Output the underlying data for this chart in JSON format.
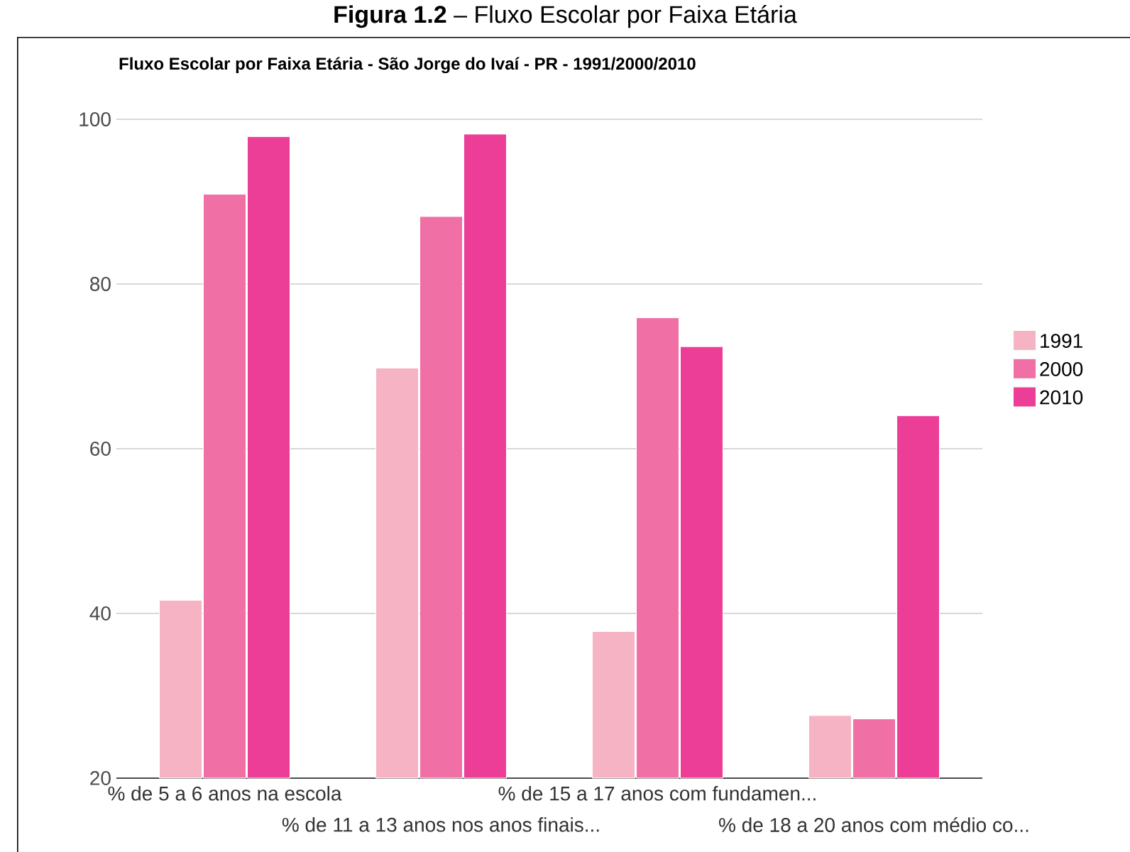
{
  "chart_data": {
    "type": "bar",
    "title": "Fluxo Escolar por Faixa Etária - São Jorge do Ivaí - PR - 1991/2000/2010",
    "annotations": [
      "**Figura 1.2** – Fluxo Escolar por Faixa Etária"
    ],
    "categories": [
      "% de 5 a 6 anos na escola",
      "% de 11 a 13 anos nos anos finais...",
      "% de 15 a 17 anos com fundamen...",
      "% de 18 a 20 anos com médio co..."
    ],
    "series": [
      {
        "name": "1991",
        "color": "#f6b3c3",
        "values": [
          41.6,
          69.8,
          37.8,
          27.6
        ]
      },
      {
        "name": "2000",
        "color": "#f070a6",
        "values": [
          90.9,
          88.2,
          75.9,
          27.2
        ]
      },
      {
        "name": "2010",
        "color": "#ec3e96",
        "values": [
          97.9,
          98.2,
          72.4,
          64.0
        ]
      }
    ],
    "ylim": [
      20,
      100
    ],
    "yticks": [
      20,
      40,
      60,
      80,
      100
    ],
    "grid": "y",
    "legend": "right"
  }
}
